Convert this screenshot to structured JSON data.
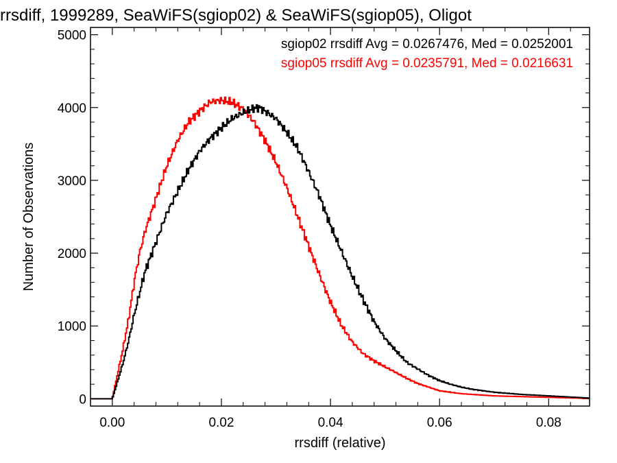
{
  "chart_data": {
    "type": "histogram-step",
    "title": "rrsdiff, 1999289, SeaWiFS(sgiop02) & SeaWiFS(sgiop05), Oligot",
    "xlabel": "rrsdiff (relative)",
    "ylabel": "Number of Observations",
    "xlim": [
      -0.004,
      0.0875
    ],
    "ylim": [
      -100,
      5100
    ],
    "xticks": [
      0.0,
      0.02,
      0.04,
      0.06,
      0.08
    ],
    "xtick_labels": [
      "0.00",
      "0.02",
      "0.04",
      "0.06",
      "0.08"
    ],
    "yticks": [
      0,
      1000,
      2000,
      3000,
      4000,
      5000
    ],
    "ytick_labels": [
      "0",
      "1000",
      "2000",
      "3000",
      "4000",
      "5000"
    ],
    "grid": false,
    "legend_position": "top-right",
    "series": [
      {
        "name": "sgiop02",
        "color": "#000000",
        "stats_label": "sgiop02 rrsdiff Avg = 0.0267476, Med = 0.0252001",
        "x": [
          -0.003,
          0.0,
          0.001,
          0.002,
          0.003,
          0.004,
          0.005,
          0.006,
          0.008,
          0.01,
          0.012,
          0.014,
          0.016,
          0.018,
          0.02,
          0.022,
          0.024,
          0.026,
          0.027,
          0.028,
          0.03,
          0.032,
          0.034,
          0.036,
          0.038,
          0.04,
          0.042,
          0.044,
          0.046,
          0.048,
          0.05,
          0.052,
          0.054,
          0.056,
          0.058,
          0.06,
          0.062,
          0.064,
          0.066,
          0.068,
          0.07,
          0.075,
          0.08,
          0.085,
          0.0875
        ],
        "y": [
          0,
          0,
          250,
          500,
          800,
          1150,
          1450,
          1750,
          2150,
          2550,
          2850,
          3150,
          3400,
          3580,
          3720,
          3850,
          3930,
          3990,
          4000,
          3950,
          3850,
          3660,
          3440,
          3120,
          2780,
          2380,
          2030,
          1680,
          1360,
          1060,
          830,
          660,
          500,
          410,
          320,
          250,
          200,
          160,
          130,
          110,
          90,
          60,
          40,
          20,
          10
        ]
      },
      {
        "name": "sgiop05",
        "color": "#ff0000",
        "stats_label": "sgiop05 rrsdiff Avg = 0.0235791, Med = 0.0216631",
        "x": [
          -0.003,
          0.0,
          0.001,
          0.002,
          0.003,
          0.004,
          0.005,
          0.006,
          0.008,
          0.01,
          0.012,
          0.014,
          0.016,
          0.018,
          0.02,
          0.022,
          0.024,
          0.026,
          0.028,
          0.03,
          0.032,
          0.034,
          0.036,
          0.038,
          0.04,
          0.042,
          0.044,
          0.046,
          0.048,
          0.05,
          0.052,
          0.054,
          0.056,
          0.058,
          0.06,
          0.062,
          0.064,
          0.066,
          0.068,
          0.07,
          0.075,
          0.08,
          0.085,
          0.0875
        ],
        "y": [
          0,
          0,
          350,
          700,
          1100,
          1600,
          2000,
          2300,
          2750,
          3200,
          3550,
          3800,
          3950,
          4080,
          4100,
          4070,
          3980,
          3800,
          3550,
          3250,
          2900,
          2500,
          2100,
          1700,
          1330,
          1010,
          780,
          620,
          520,
          440,
          360,
          280,
          210,
          160,
          110,
          90,
          70,
          60,
          50,
          40,
          30,
          20,
          10,
          5
        ]
      }
    ]
  }
}
